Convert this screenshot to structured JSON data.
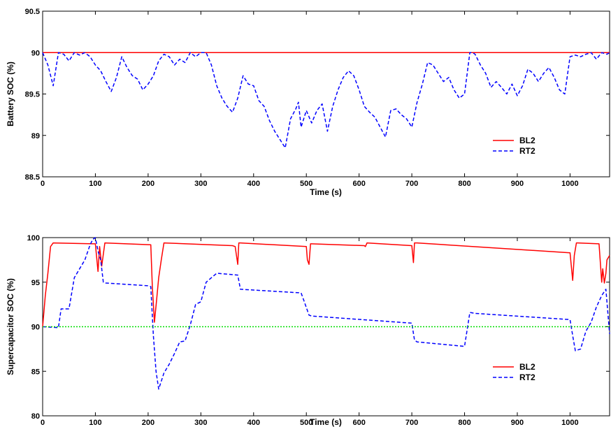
{
  "chart_data": [
    {
      "type": "line",
      "xlabel": "Time (s)",
      "ylabel": "Battery SOC (%)",
      "xlim": [
        0,
        1075
      ],
      "ylim": [
        88.5,
        90.5
      ],
      "xticks": [
        0,
        100,
        200,
        300,
        400,
        500,
        600,
        700,
        800,
        900,
        1000
      ],
      "yticks": [
        88.5,
        89,
        89.5,
        90,
        90.5
      ],
      "ytick_labels": [
        "88.5",
        "89",
        "89.5",
        "90",
        "90.5"
      ],
      "grid": false,
      "legend": "bottom-right",
      "series": [
        {
          "name": "BL2",
          "color": "#ff0000",
          "style": "solid",
          "x": [
            0,
            1075
          ],
          "y": [
            90.0,
            90.0
          ]
        },
        {
          "name": "RT2",
          "color": "#0000ff",
          "style": "dashed",
          "x": [
            0,
            10,
            20,
            30,
            40,
            50,
            60,
            70,
            80,
            90,
            100,
            110,
            120,
            130,
            140,
            150,
            160,
            170,
            180,
            190,
            200,
            210,
            220,
            230,
            240,
            250,
            260,
            270,
            280,
            290,
            300,
            310,
            320,
            330,
            340,
            350,
            360,
            370,
            380,
            390,
            400,
            410,
            420,
            430,
            440,
            450,
            460,
            470,
            480,
            485,
            490,
            500,
            510,
            520,
            530,
            540,
            550,
            560,
            570,
            580,
            590,
            600,
            610,
            620,
            630,
            640,
            650,
            660,
            670,
            680,
            690,
            700,
            710,
            720,
            730,
            740,
            750,
            760,
            770,
            780,
            790,
            800,
            810,
            815,
            820,
            830,
            840,
            850,
            860,
            870,
            880,
            890,
            900,
            910,
            920,
            930,
            940,
            950,
            960,
            970,
            980,
            990,
            1000,
            1010,
            1020,
            1030,
            1040,
            1050,
            1060,
            1070,
            1075
          ],
          "y": [
            90.0,
            89.85,
            89.6,
            90.0,
            89.98,
            89.9,
            90.0,
            89.97,
            90.0,
            89.95,
            89.85,
            89.78,
            89.65,
            89.53,
            89.7,
            89.95,
            89.82,
            89.72,
            89.68,
            89.55,
            89.62,
            89.72,
            89.9,
            89.98,
            89.95,
            89.85,
            89.92,
            89.88,
            90.0,
            89.95,
            90.0,
            90.0,
            89.85,
            89.6,
            89.45,
            89.35,
            89.28,
            89.45,
            89.72,
            89.62,
            89.6,
            89.42,
            89.35,
            89.18,
            89.05,
            88.95,
            88.85,
            89.2,
            89.32,
            89.4,
            89.1,
            89.3,
            89.15,
            89.3,
            89.38,
            89.05,
            89.35,
            89.55,
            89.7,
            89.78,
            89.72,
            89.55,
            89.35,
            89.28,
            89.22,
            89.1,
            88.98,
            89.3,
            89.32,
            89.25,
            89.2,
            89.1,
            89.4,
            89.62,
            89.88,
            89.85,
            89.75,
            89.65,
            89.7,
            89.55,
            89.45,
            89.5,
            90.0,
            90.0,
            89.98,
            89.85,
            89.75,
            89.58,
            89.65,
            89.58,
            89.5,
            89.62,
            89.48,
            89.6,
            89.8,
            89.75,
            89.65,
            89.75,
            89.82,
            89.7,
            89.55,
            89.5,
            89.95,
            89.97,
            89.95,
            89.98,
            90.0,
            89.92,
            90.0,
            89.98,
            90.0
          ]
        }
      ]
    },
    {
      "type": "line",
      "xlabel": "Time (s)",
      "ylabel": "Supercapacitor SOC (%)",
      "xlim": [
        0,
        1075
      ],
      "ylim": [
        80,
        100
      ],
      "xticks": [
        0,
        100,
        200,
        300,
        400,
        500,
        600,
        700,
        800,
        900,
        1000
      ],
      "yticks": [
        80,
        85,
        90,
        95,
        100
      ],
      "ytick_labels": [
        "80",
        "85",
        "90",
        "95",
        "100"
      ],
      "grid": false,
      "legend": "bottom-right",
      "series": [
        {
          "name": "BL2",
          "color": "#ff0000",
          "style": "solid",
          "x": [
            0,
            5,
            10,
            15,
            20,
            100,
            105,
            108,
            112,
            118,
            205,
            208,
            212,
            216,
            220,
            225,
            230,
            360,
            365,
            370,
            372,
            375,
            500,
            502,
            505,
            508,
            510,
            610,
            612,
            615,
            700,
            703,
            705,
            708,
            710,
            1000,
            1005,
            1008,
            1012,
            1015,
            1055,
            1060,
            1062,
            1065,
            1068,
            1070,
            1075
          ],
          "y": [
            90.0,
            93.5,
            96.0,
            99.0,
            99.4,
            99.3,
            96.2,
            99.0,
            96.8,
            99.4,
            99.2,
            94.5,
            90.5,
            93.0,
            95.5,
            97.5,
            99.4,
            99.1,
            99.0,
            97.0,
            99.4,
            99.4,
            99.0,
            97.5,
            97.0,
            99.3,
            99.3,
            99.1,
            99.0,
            99.4,
            99.1,
            97.2,
            99.4,
            99.4,
            99.4,
            98.3,
            95.2,
            98.0,
            99.4,
            99.4,
            99.3,
            95.0,
            96.5,
            94.9,
            96.0,
            97.5,
            98.0
          ]
        },
        {
          "name": "RT2",
          "color": "#0000ff",
          "style": "dashed",
          "x": [
            0,
            30,
            35,
            50,
            60,
            80,
            90,
            95,
            100,
            105,
            110,
            115,
            120,
            200,
            205,
            210,
            215,
            220,
            230,
            240,
            250,
            260,
            270,
            280,
            290,
            300,
            310,
            330,
            370,
            375,
            490,
            495,
            505,
            510,
            700,
            705,
            710,
            800,
            810,
            820,
            1000,
            1005,
            1010,
            1020,
            1030,
            1040,
            1050,
            1060,
            1068,
            1075
          ],
          "y": [
            90.0,
            89.9,
            92.0,
            92.0,
            95.5,
            97.5,
            99.2,
            99.8,
            100.0,
            98.5,
            97.5,
            95.0,
            94.9,
            94.6,
            94.5,
            89.0,
            85.0,
            83.0,
            84.8,
            85.8,
            87.0,
            88.3,
            88.4,
            90.2,
            92.5,
            92.8,
            95.0,
            96.0,
            95.8,
            94.2,
            93.8,
            93.0,
            91.3,
            91.2,
            90.4,
            88.5,
            88.3,
            87.8,
            91.6,
            91.5,
            90.8,
            89.0,
            87.3,
            87.5,
            89.5,
            90.5,
            92.2,
            93.5,
            94.2,
            89.2
          ]
        },
        {
          "name": "",
          "color": "#00dd00",
          "style": "dotted",
          "x": [
            0,
            1075
          ],
          "y": [
            90.0,
            90.0
          ]
        }
      ]
    }
  ]
}
